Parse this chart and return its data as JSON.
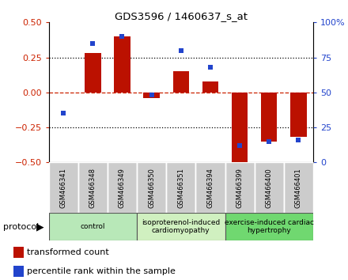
{
  "title": "GDS3596 / 1460637_s_at",
  "samples": [
    "GSM466341",
    "GSM466348",
    "GSM466349",
    "GSM466350",
    "GSM466351",
    "GSM466394",
    "GSM466399",
    "GSM466400",
    "GSM466401"
  ],
  "transformed_count": [
    0.0,
    0.28,
    0.4,
    -0.04,
    0.15,
    0.08,
    -0.5,
    -0.35,
    -0.32
  ],
  "percentile_rank": [
    35,
    85,
    90,
    48,
    80,
    68,
    12,
    15,
    16
  ],
  "groups": [
    {
      "label": "control",
      "start": 0,
      "end": 3,
      "color": "#b8e8b8"
    },
    {
      "label": "isoproterenol-induced\ncardiomyopathy",
      "start": 3,
      "end": 6,
      "color": "#d0f0c0"
    },
    {
      "label": "exercise-induced cardiac\nhypertrophy",
      "start": 6,
      "end": 9,
      "color": "#70d870"
    }
  ],
  "bar_color": "#bb1100",
  "dot_color": "#2244cc",
  "ylim_left": [
    -0.5,
    0.5
  ],
  "ylim_right": [
    0,
    100
  ],
  "yticks_left": [
    -0.5,
    -0.25,
    0.0,
    0.25,
    0.5
  ],
  "yticks_right": [
    0,
    25,
    50,
    75,
    100
  ],
  "hlines": [
    -0.25,
    0.0,
    0.25
  ],
  "background_color": "#ffffff",
  "sample_box_color": "#cccccc",
  "sample_box_edge": "#999999",
  "left_label_color": "#cc2200",
  "right_label_color": "#2244cc"
}
